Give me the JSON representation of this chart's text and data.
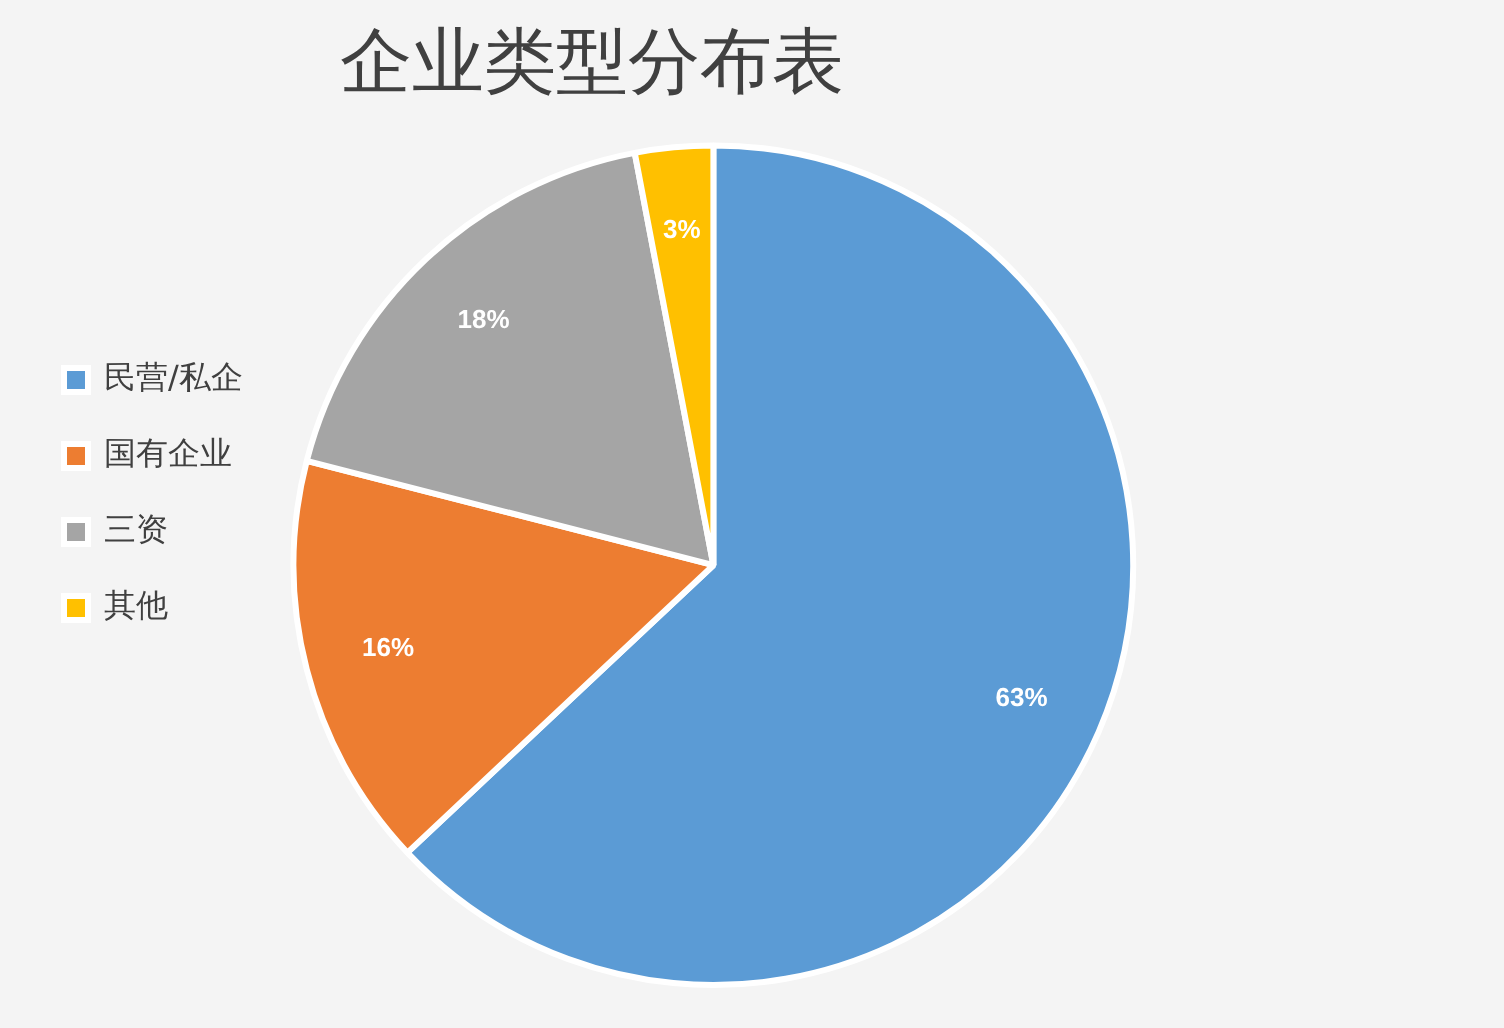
{
  "chart_data": {
    "type": "pie",
    "title": "企业类型分布表",
    "categories": [
      "民营/私企",
      "国有企业",
      "三资",
      "其他"
    ],
    "values": [
      63,
      16,
      18,
      3
    ],
    "colors": [
      "#5b9bd5",
      "#ed7d31",
      "#a5a5a5",
      "#ffc000"
    ],
    "value_labels": [
      "63%",
      "16%",
      "18%",
      "3%"
    ],
    "legend": "left"
  }
}
